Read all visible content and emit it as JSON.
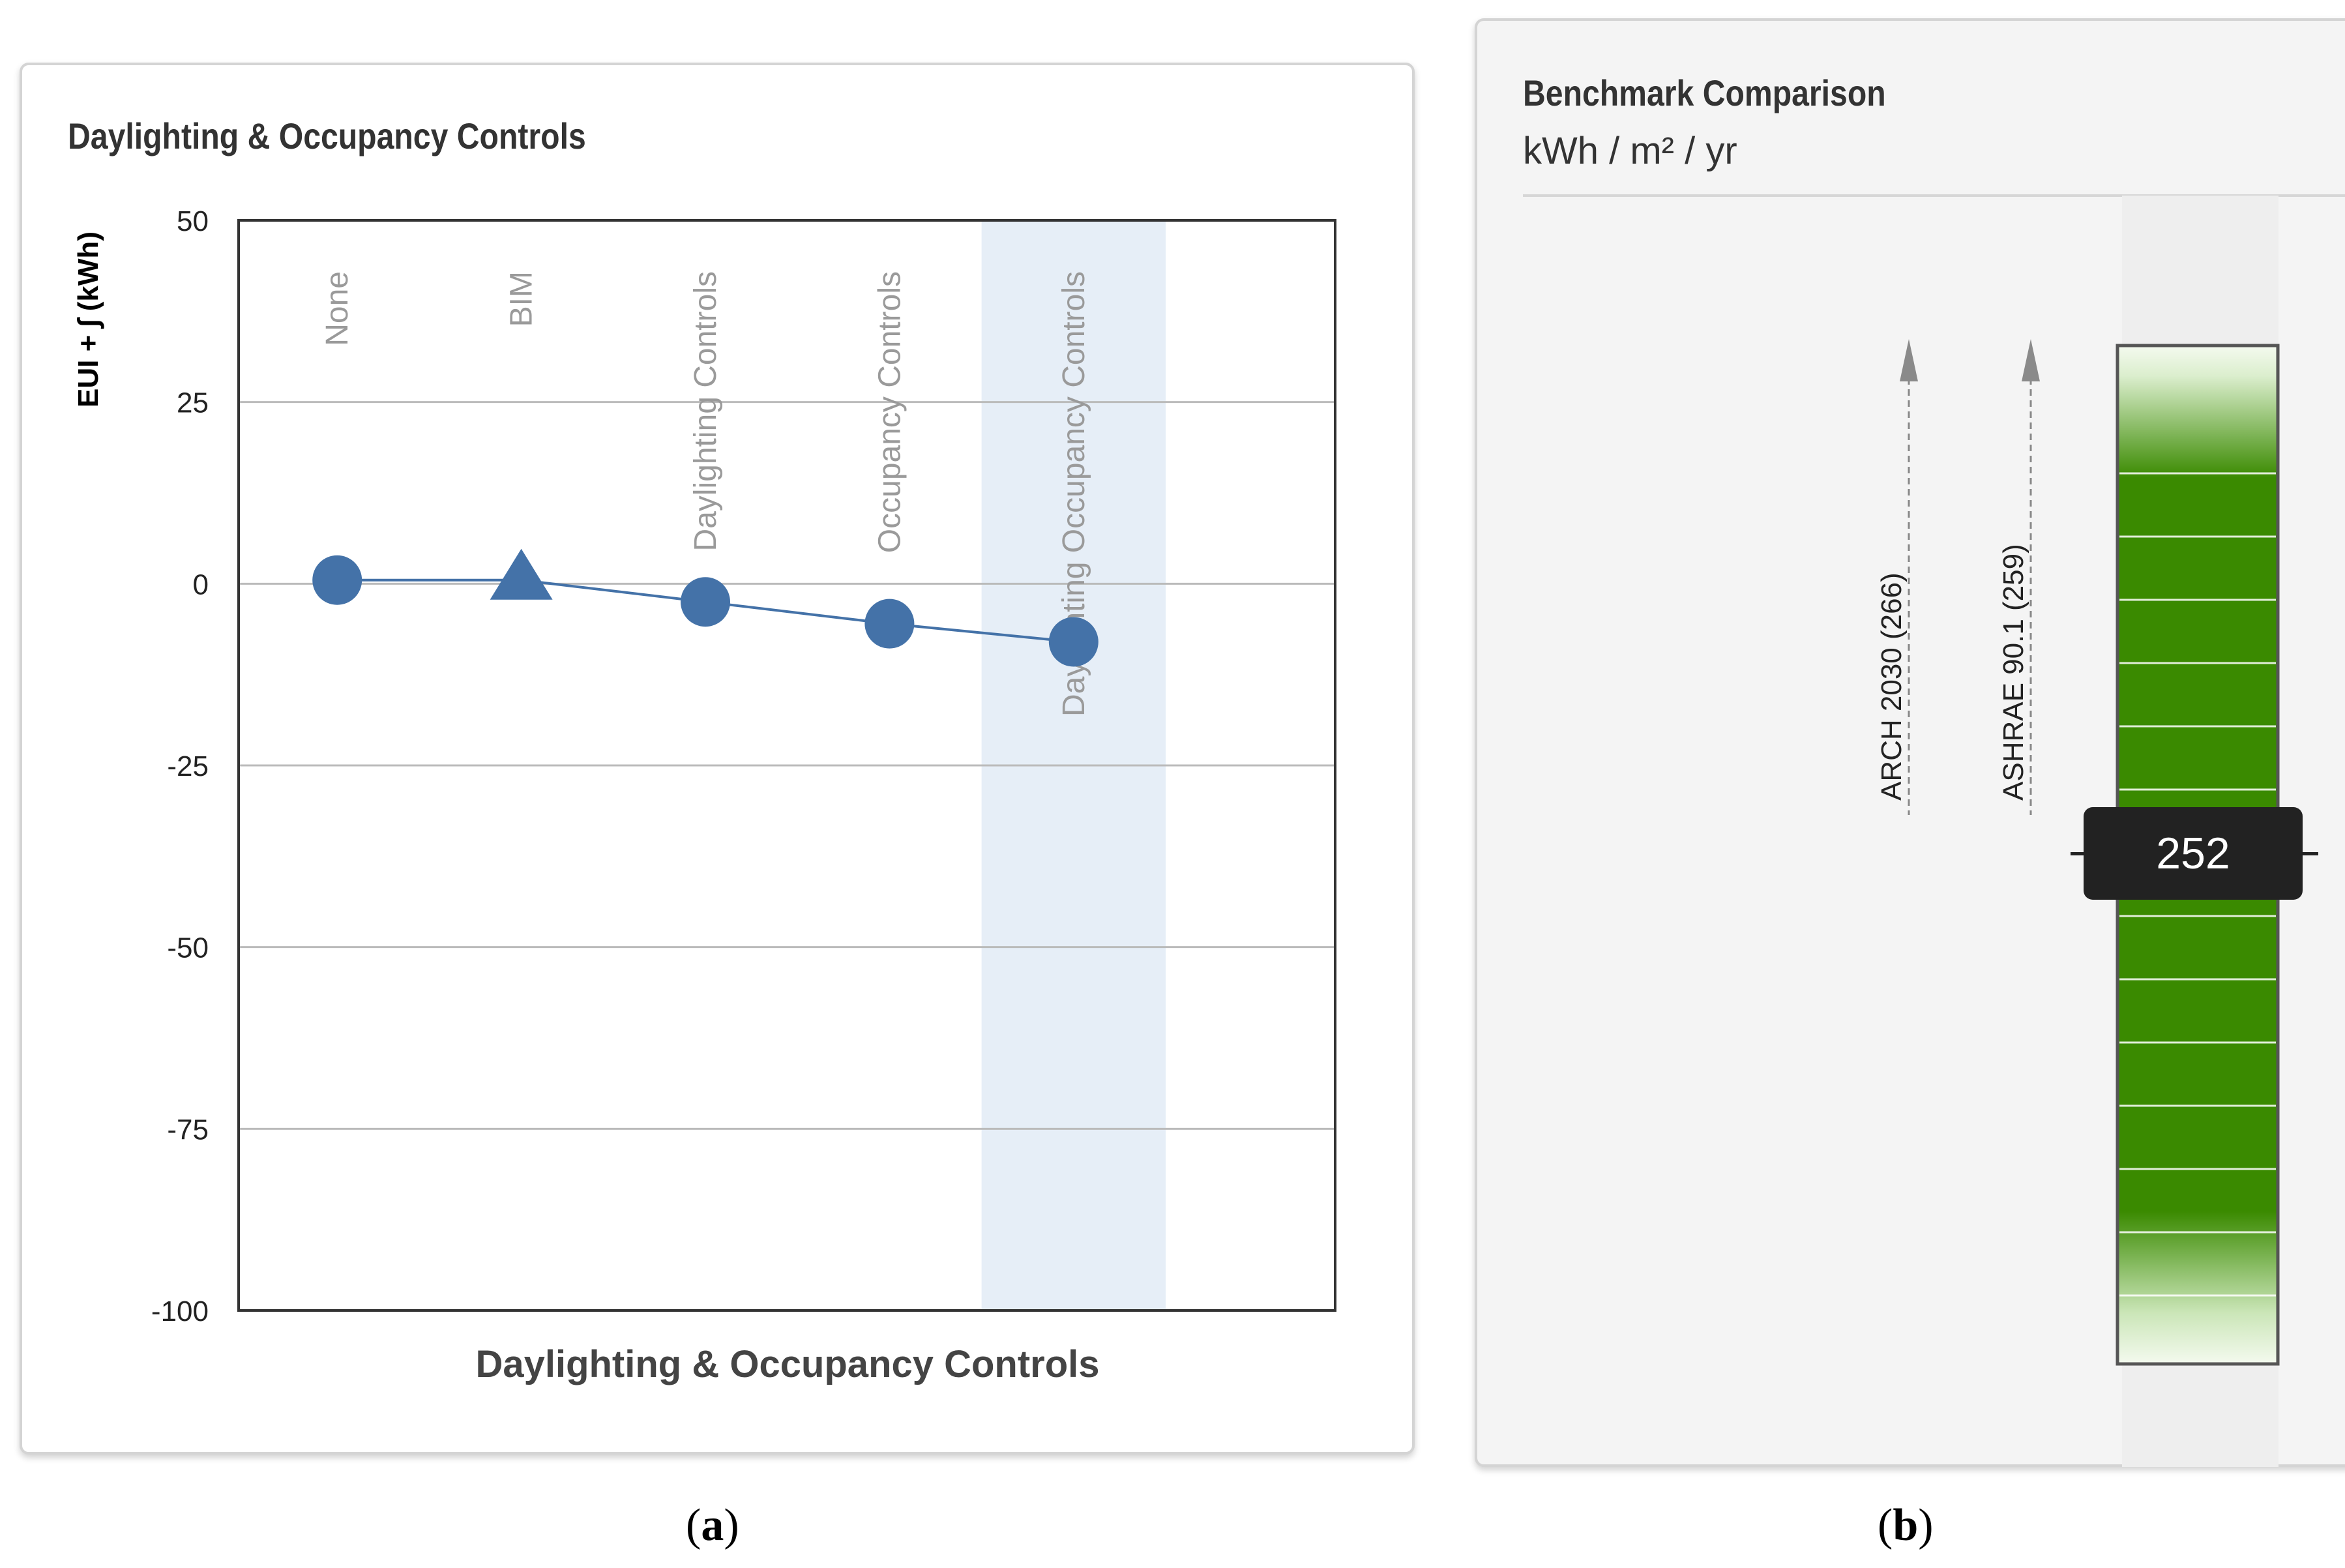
{
  "panel_a": {
    "card_title": "Daylighting & Occupancy Controls",
    "caption_letter": "a"
  },
  "panel_b": {
    "card_title": "Benchmark Comparison",
    "units": "kWh / m² / yr",
    "caption_letter": "b",
    "benchmarks": [
      {
        "label": "ARCH 2030 (266)",
        "value": 266
      },
      {
        "label": "ASHRAE 90.1 (259)",
        "value": 259
      }
    ],
    "current_value": "252",
    "colors": {
      "bar_green": "#3a8a00",
      "bar_light": "#e8f3dc",
      "readout_bg": "#222222"
    }
  },
  "chart_data": {
    "type": "line",
    "title": "Daylighting & Occupancy Controls",
    "xlabel": "Daylighting & Occupancy Controls",
    "ylabel": "EUI + ∫ (kWh)",
    "categories": [
      "None",
      "BIM",
      "Daylighting Controls",
      "Occupancy Controls",
      "Daylighting Occupancy Controls"
    ],
    "markers": [
      "circle",
      "triangle",
      "circle",
      "circle",
      "circle"
    ],
    "values": [
      0.5,
      0.5,
      -2.5,
      -5.5,
      -8
    ],
    "ylim": [
      -100,
      50
    ],
    "yticks": [
      50,
      25,
      0,
      -25,
      -50,
      -75,
      -100
    ],
    "grid": true,
    "highlighted_category": "Daylighting Occupancy Controls",
    "colors": {
      "series": "#4472a8",
      "highlight": "#e6eef7",
      "grid": "#bbbbbb"
    }
  }
}
